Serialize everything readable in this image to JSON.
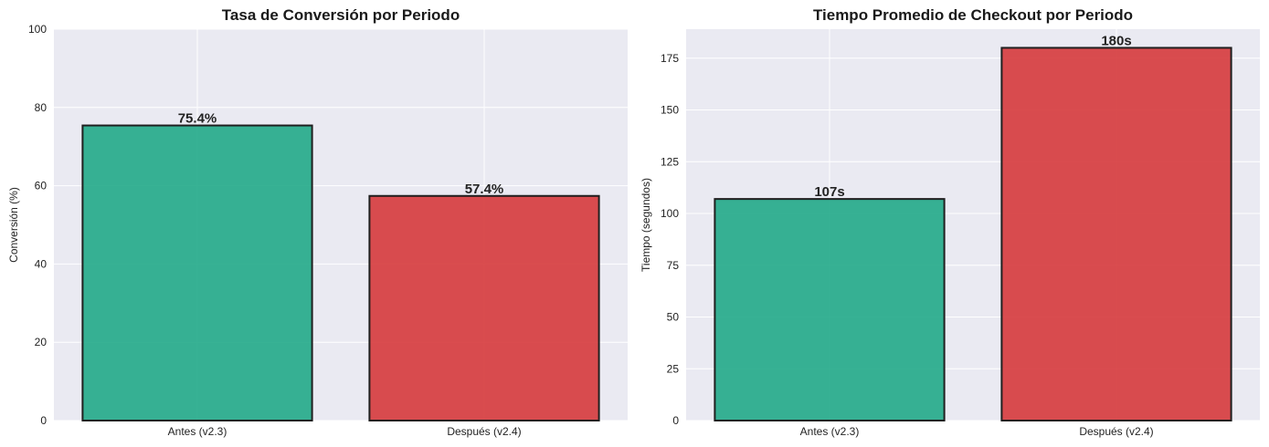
{
  "colors": {
    "background": "#eaeaf2",
    "grid": "#ffffff",
    "edge": "#1f1f1f",
    "antes": "#22aa88",
    "despues": "#d63a3c"
  },
  "chart_data": [
    {
      "type": "bar",
      "title": "Tasa de Conversión por Periodo",
      "xlabel": "",
      "ylabel": "Conversión (%)",
      "categories": [
        "Antes (v2.3)",
        "Después (v2.4)"
      ],
      "values": [
        75.4,
        57.4
      ],
      "data_labels": [
        "75.4%",
        "57.4%"
      ],
      "ylim": [
        0,
        100
      ],
      "yticks": [
        0,
        20,
        40,
        60,
        80,
        100
      ],
      "grid": true
    },
    {
      "type": "bar",
      "title": "Tiempo Promedio de Checkout por Periodo",
      "xlabel": "",
      "ylabel": "Tiempo (segundos)",
      "categories": [
        "Antes (v2.3)",
        "Después (v2.4)"
      ],
      "values": [
        107,
        180
      ],
      "data_labels": [
        "107s",
        "180s"
      ],
      "ylim": [
        0,
        189
      ],
      "yticks": [
        0,
        25,
        50,
        75,
        100,
        125,
        150,
        175
      ],
      "grid": true
    }
  ]
}
